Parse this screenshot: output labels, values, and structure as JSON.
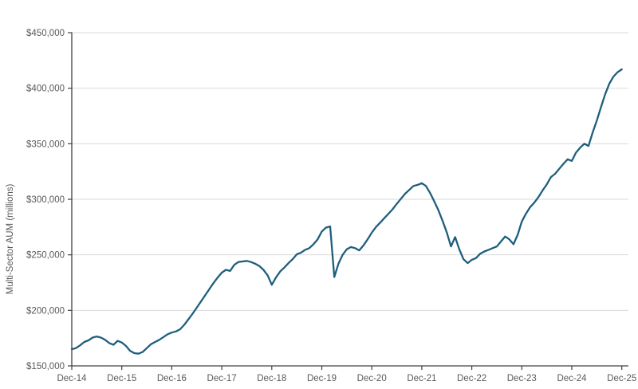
{
  "chart_data": {
    "type": "line",
    "title": "",
    "xlabel": "",
    "ylabel": "Multi-Sector AUM (millions)",
    "ylim": [
      150000,
      450000
    ],
    "y_tick_step": 50000,
    "y_tick_labels": [
      "$150,000",
      "$200,000",
      "$250,000",
      "$300,000",
      "$350,000",
      "$400,000",
      "$450,000"
    ],
    "x_tick_labels": [
      "Dec-14",
      "Dec-15",
      "Dec-16",
      "Dec-17",
      "Dec-18",
      "Dec-19",
      "Dec-20",
      "Dec-21",
      "Dec-22",
      "Dec-23",
      "Dec-24",
      "Dec-25"
    ],
    "x_frequency": "monthly",
    "grid": "horizontal",
    "legend": "none",
    "line_color": "#1f5f7c",
    "axis_color": "#404040",
    "gridline_color": "#d9d9d9",
    "tick_label_color": "#595959",
    "x": [
      "Dec-14",
      "Jan-15",
      "Feb-15",
      "Mar-15",
      "Apr-15",
      "May-15",
      "Jun-15",
      "Jul-15",
      "Aug-15",
      "Sep-15",
      "Oct-15",
      "Nov-15",
      "Dec-15",
      "Jan-16",
      "Feb-16",
      "Mar-16",
      "Apr-16",
      "May-16",
      "Jun-16",
      "Jul-16",
      "Aug-16",
      "Sep-16",
      "Oct-16",
      "Nov-16",
      "Dec-16",
      "Jan-17",
      "Feb-17",
      "Mar-17",
      "Apr-17",
      "May-17",
      "Jun-17",
      "Jul-17",
      "Aug-17",
      "Sep-17",
      "Oct-17",
      "Nov-17",
      "Dec-17",
      "Jan-18",
      "Feb-18",
      "Mar-18",
      "Apr-18",
      "May-18",
      "Jun-18",
      "Jul-18",
      "Aug-18",
      "Sep-18",
      "Oct-18",
      "Nov-18",
      "Dec-18",
      "Jan-19",
      "Feb-19",
      "Mar-19",
      "Apr-19",
      "May-19",
      "Jun-19",
      "Jul-19",
      "Aug-19",
      "Sep-19",
      "Oct-19",
      "Nov-19",
      "Dec-19",
      "Jan-20",
      "Feb-20",
      "Mar-20",
      "Apr-20",
      "May-20",
      "Jun-20",
      "Jul-20",
      "Aug-20",
      "Sep-20",
      "Oct-20",
      "Nov-20",
      "Dec-20",
      "Jan-21",
      "Feb-21",
      "Mar-21",
      "Apr-21",
      "May-21",
      "Jun-21",
      "Jul-21",
      "Aug-21",
      "Sep-21",
      "Oct-21",
      "Nov-21",
      "Dec-21",
      "Jan-22",
      "Feb-22",
      "Mar-22",
      "Apr-22",
      "May-22",
      "Jun-22",
      "Jul-22",
      "Aug-22",
      "Sep-22",
      "Oct-22",
      "Nov-22",
      "Dec-22",
      "Jan-23",
      "Feb-23",
      "Mar-23",
      "Apr-23",
      "May-23",
      "Jun-23",
      "Jul-23",
      "Aug-23",
      "Sep-23",
      "Oct-23",
      "Nov-23",
      "Dec-23",
      "Jan-24",
      "Feb-24",
      "Mar-24",
      "Apr-24",
      "May-24",
      "Jun-24",
      "Jul-24",
      "Aug-24",
      "Sep-24",
      "Oct-24",
      "Nov-24",
      "Dec-24",
      "Jan-25",
      "Feb-25",
      "Mar-25",
      "Apr-25",
      "May-25",
      "Jun-25",
      "Jul-25",
      "Aug-25",
      "Sep-25",
      "Oct-25",
      "Nov-25",
      "Dec-25"
    ],
    "series": [
      {
        "name": "Multi-Sector AUM (millions)",
        "values": [
          165000,
          166000,
          168500,
          171500,
          173000,
          175500,
          176500,
          175500,
          173500,
          170500,
          169000,
          172500,
          171000,
          168000,
          163500,
          161500,
          161000,
          162500,
          166000,
          169500,
          171500,
          173500,
          176000,
          178500,
          180000,
          181000,
          183000,
          187000,
          192000,
          197000,
          202500,
          208000,
          213500,
          219000,
          224500,
          229500,
          234000,
          236500,
          235500,
          241000,
          243500,
          244000,
          244500,
          243500,
          242000,
          240000,
          236500,
          231500,
          223000,
          229500,
          235000,
          238500,
          242500,
          246000,
          250500,
          252000,
          254500,
          256000,
          259500,
          264000,
          271000,
          274500,
          275500,
          230000,
          242000,
          250000,
          255000,
          257000,
          256000,
          254000,
          258500,
          264000,
          270000,
          275000,
          279000,
          283000,
          287000,
          291000,
          296000,
          300500,
          305000,
          308500,
          312000,
          313000,
          314500,
          312000,
          305500,
          298000,
          290000,
          280500,
          270000,
          257500,
          266000,
          255000,
          246000,
          242500,
          245500,
          247000,
          251000,
          253000,
          254500,
          256000,
          257500,
          262000,
          266500,
          264000,
          259500,
          268000,
          280000,
          287000,
          293000,
          297000,
          302000,
          308000,
          313500,
          320000,
          323000,
          327500,
          332000,
          336000,
          334500,
          342000,
          346500,
          350000,
          348000,
          360000,
          371000,
          383000,
          394500,
          404000,
          410500,
          414500,
          417000
        ]
      }
    ]
  }
}
